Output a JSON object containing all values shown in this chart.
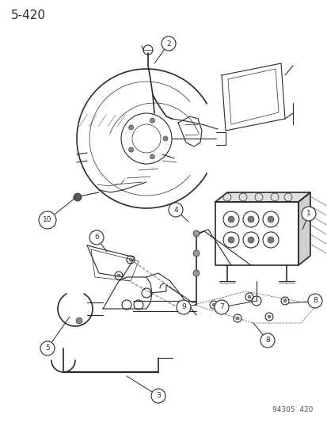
{
  "page_number": "5-420",
  "catalog_number": "94305  420",
  "background_color": "#ffffff",
  "line_color": "#2a2a2a",
  "figsize": [
    4.14,
    5.33
  ],
  "dpi": 100,
  "title_fontsize": 11,
  "catalog_fontsize": 6.5
}
